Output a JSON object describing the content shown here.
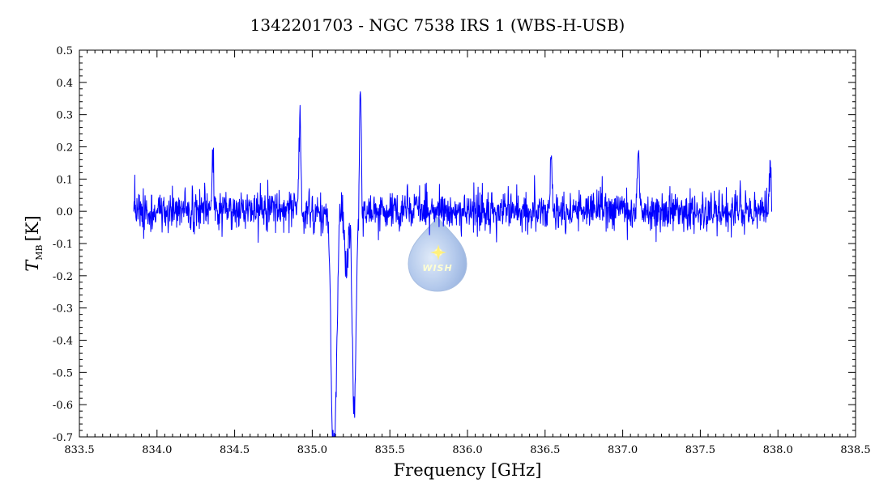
{
  "chart_data": {
    "type": "line",
    "title": "1342201703 - NGC 7538 IRS 1 (WBS-H-USB)",
    "xlabel": "Frequency [GHz]",
    "ylabel_main": "T",
    "ylabel_sub": "MB",
    "ylabel_unit": "[K]",
    "xlim": [
      833.5,
      838.5
    ],
    "ylim": [
      -0.7,
      0.5
    ],
    "xticks": [
      "833.5",
      "834.0",
      "834.5",
      "835.0",
      "835.5",
      "836.0",
      "836.5",
      "837.0",
      "837.5",
      "838.0",
      "838.5"
    ],
    "yticks": [
      "0.5",
      "0.4",
      "0.3",
      "0.2",
      "0.1",
      "0.0",
      "-0.1",
      "-0.2",
      "-0.3",
      "-0.4",
      "-0.5",
      "-0.6",
      "-0.7"
    ],
    "grid": false,
    "line_color": "#0000ff",
    "series": [
      {
        "x_range": [
          833.85,
          837.96
        ],
        "points": 1800,
        "baseline": 0.0,
        "noise_rms": 0.03,
        "features": [
          {
            "x": 835.13,
            "value": -0.57
          },
          {
            "x": 835.15,
            "value": -0.5
          },
          {
            "x": 835.22,
            "value": -0.2
          },
          {
            "x": 835.27,
            "value": -0.63
          },
          {
            "x": 835.31,
            "value": 0.36
          },
          {
            "x": 834.92,
            "value": 0.31
          },
          {
            "x": 834.36,
            "value": 0.19
          },
          {
            "x": 836.54,
            "value": 0.18
          },
          {
            "x": 837.1,
            "value": 0.2
          },
          {
            "x": 837.95,
            "value": 0.17
          }
        ]
      }
    ]
  },
  "watermark": {
    "label": "WISH",
    "icon": "wish-droplet-logo"
  }
}
